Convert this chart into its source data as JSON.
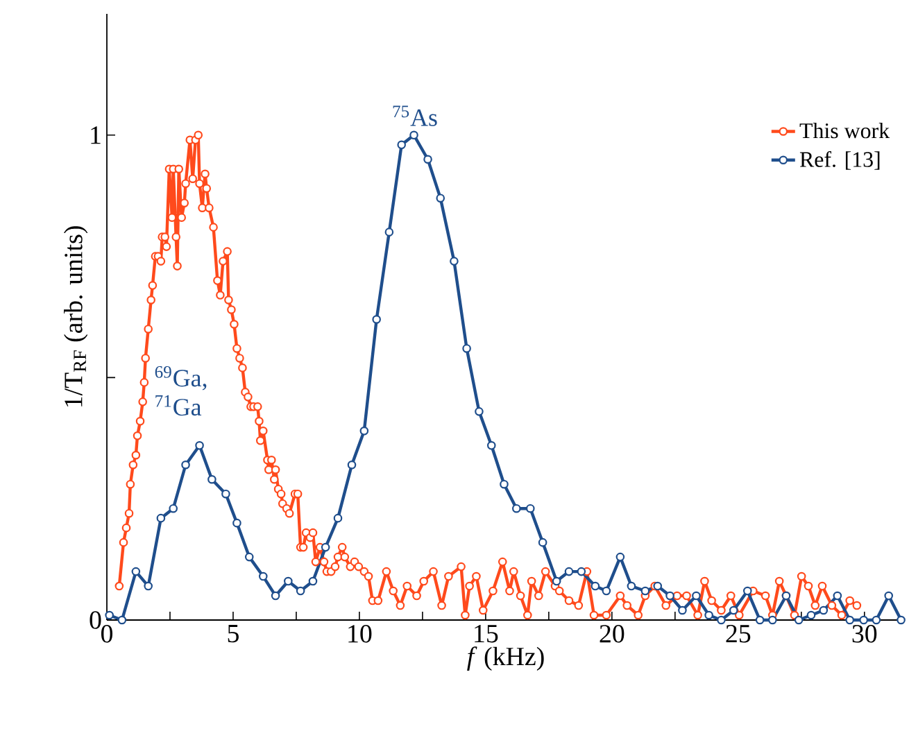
{
  "chart_data": {
    "type": "line",
    "xlabel": "*f* (kHz)",
    "ylabel": "1/T$_{RF}$ (arb. units)",
    "xlim": [
      0,
      31.6
    ],
    "ylim": [
      0,
      1.25
    ],
    "xticks": [
      0,
      {
        "value": 2.5,
        "label": null
      },
      5,
      {
        "value": 7.5,
        "label": null
      },
      10,
      {
        "value": 12.5,
        "label": null
      },
      15,
      {
        "value": 17.5,
        "label": null
      },
      20,
      {
        "value": 22.5,
        "label": null
      },
      25,
      {
        "value": 27.5,
        "label": null
      },
      30
    ],
    "yticks": [
      0,
      {
        "value": 0.5,
        "label": null
      },
      1
    ],
    "legend": "top right",
    "marker": "circle",
    "line_style": "solid",
    "annotations": [
      {
        "text": "$^{75}$As",
        "x": 12.2,
        "y": 1.0
      },
      {
        "text": "$^{69}$Ga, $^{71}$Ga",
        "x": 3.7,
        "y": 0.36
      }
    ],
    "series": [
      {
        "name": "This work",
        "color": "#ff4a1c",
        "x": [
          0.49,
          0.66,
          0.77,
          0.88,
          0.93,
          1.04,
          1.15,
          1.21,
          1.32,
          1.42,
          1.48,
          1.53,
          1.64,
          1.75,
          1.81,
          1.92,
          2.03,
          2.14,
          2.19,
          2.3,
          2.36,
          2.47,
          2.58,
          2.63,
          2.74,
          2.79,
          2.85,
          2.96,
          3.07,
          3.12,
          3.29,
          3.4,
          3.51,
          3.62,
          3.67,
          3.78,
          3.89,
          3.95,
          4.05,
          4.22,
          4.38,
          4.49,
          4.6,
          4.77,
          4.82,
          4.93,
          5.04,
          5.15,
          5.26,
          5.37,
          5.48,
          5.59,
          5.7,
          5.81,
          5.97,
          6.03,
          6.08,
          6.19,
          6.36,
          6.41,
          6.52,
          6.63,
          6.68,
          6.79,
          6.9,
          6.96,
          7.12,
          7.23,
          7.45,
          7.56,
          7.67,
          7.78,
          7.89,
          8.05,
          8.16,
          8.27,
          8.44,
          8.6,
          8.71,
          8.88,
          9.04,
          9.15,
          9.32,
          9.42,
          9.64,
          9.81,
          9.97,
          10.19,
          10.36,
          10.52,
          10.74,
          11.07,
          11.34,
          11.62,
          11.89,
          12.27,
          12.55,
          12.93,
          13.26,
          13.53,
          14.03,
          14.19,
          14.36,
          14.63,
          14.9,
          15.29,
          15.67,
          15.95,
          16.11,
          16.38,
          16.66,
          16.82,
          17.1,
          17.37,
          17.75,
          17.92,
          18.3,
          18.68,
          19.01,
          19.29,
          19.78,
          20.33,
          20.6,
          21.04,
          21.32,
          21.7,
          22.14,
          22.58,
          22.96,
          23.4,
          23.67,
          23.95,
          24.33,
          24.71,
          25.04,
          25.59,
          26.08,
          26.36,
          26.63,
          26.9,
          27.23,
          27.51,
          27.78,
          28.05,
          28.33,
          28.71,
          29.1,
          29.42,
          29.7
        ],
        "values": [
          0.07,
          0.16,
          0.19,
          0.22,
          0.28,
          0.32,
          0.34,
          0.38,
          0.41,
          0.45,
          0.49,
          0.54,
          0.6,
          0.66,
          0.69,
          0.75,
          0.75,
          0.74,
          0.79,
          0.79,
          0.77,
          0.93,
          0.83,
          0.93,
          0.79,
          0.73,
          0.93,
          0.83,
          0.86,
          0.9,
          0.99,
          0.91,
          0.99,
          1.0,
          0.9,
          0.85,
          0.92,
          0.89,
          0.85,
          0.81,
          0.7,
          0.67,
          0.74,
          0.76,
          0.66,
          0.64,
          0.61,
          0.56,
          0.54,
          0.52,
          0.47,
          0.46,
          0.44,
          0.44,
          0.44,
          0.41,
          0.37,
          0.39,
          0.33,
          0.31,
          0.33,
          0.29,
          0.31,
          0.27,
          0.26,
          0.24,
          0.23,
          0.22,
          0.26,
          0.26,
          0.15,
          0.15,
          0.18,
          0.17,
          0.18,
          0.12,
          0.15,
          0.12,
          0.1,
          0.1,
          0.11,
          0.13,
          0.15,
          0.13,
          0.11,
          0.12,
          0.11,
          0.1,
          0.09,
          0.04,
          0.04,
          0.1,
          0.06,
          0.03,
          0.07,
          0.05,
          0.08,
          0.1,
          0.03,
          0.09,
          0.11,
          0.01,
          0.07,
          0.09,
          0.02,
          0.06,
          0.12,
          0.06,
          0.1,
          0.05,
          0.01,
          0.08,
          0.05,
          0.1,
          0.07,
          0.06,
          0.04,
          0.03,
          0.1,
          0.01,
          0.01,
          0.05,
          0.03,
          0.01,
          0.05,
          0.07,
          0.03,
          0.05,
          0.05,
          0.01,
          0.08,
          0.04,
          0.02,
          0.05,
          0.01,
          0.06,
          0.05,
          0.01,
          0.08,
          0.05,
          0.01,
          0.09,
          0.07,
          0.03,
          0.07,
          0.03,
          0.01,
          0.04,
          0.03
        ]
      },
      {
        "name": "Ref. [13]",
        "color": "#1f4e8c",
        "x": [
          0.1,
          0.6,
          1.15,
          1.64,
          2.14,
          2.63,
          3.12,
          3.67,
          4.16,
          4.71,
          5.15,
          5.64,
          6.19,
          6.68,
          7.18,
          7.67,
          8.16,
          8.66,
          9.15,
          9.7,
          10.19,
          10.68,
          11.18,
          11.67,
          12.16,
          12.71,
          13.21,
          13.75,
          14.25,
          14.74,
          15.23,
          15.73,
          16.22,
          16.77,
          17.26,
          17.81,
          18.3,
          18.79,
          19.34,
          19.78,
          20.33,
          20.77,
          21.32,
          21.81,
          22.3,
          22.79,
          23.34,
          23.84,
          24.33,
          24.82,
          25.37,
          25.86,
          26.36,
          26.9,
          27.4,
          27.89,
          28.38,
          28.93,
          29.42,
          29.97,
          30.47,
          30.96,
          31.45
        ],
        "values": [
          0.01,
          0.0,
          0.1,
          0.07,
          0.21,
          0.23,
          0.32,
          0.36,
          0.29,
          0.26,
          0.2,
          0.13,
          0.09,
          0.05,
          0.08,
          0.06,
          0.08,
          0.15,
          0.21,
          0.32,
          0.39,
          0.62,
          0.8,
          0.98,
          1.0,
          0.95,
          0.87,
          0.74,
          0.56,
          0.43,
          0.36,
          0.28,
          0.23,
          0.23,
          0.16,
          0.08,
          0.1,
          0.1,
          0.07,
          0.06,
          0.13,
          0.07,
          0.06,
          0.07,
          0.05,
          0.02,
          0.05,
          0.01,
          0.0,
          0.02,
          0.06,
          0.0,
          0.0,
          0.05,
          0.0,
          0.01,
          0.02,
          0.05,
          0.0,
          0.0,
          0.0,
          0.05,
          0.0
        ]
      }
    ]
  }
}
